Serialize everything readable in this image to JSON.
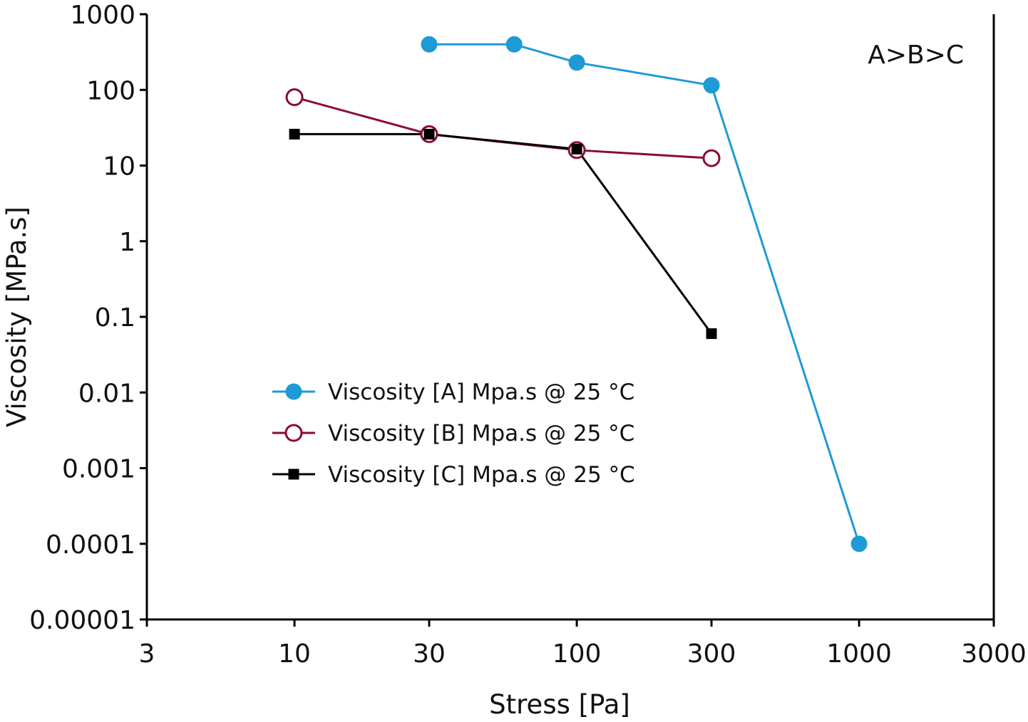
{
  "chart_data": {
    "type": "line",
    "title": "",
    "xlabel": "Stress [Pa]",
    "ylabel": "Viscosity [MPa.s]",
    "x_scale": "log",
    "y_scale": "log",
    "xlim": [
      3,
      3000
    ],
    "ylim": [
      1e-05,
      1000
    ],
    "x_ticks": [
      3,
      10,
      30,
      100,
      300,
      1000,
      3000
    ],
    "x_tick_labels": [
      "3",
      "10",
      "30",
      "100",
      "300",
      "1000",
      "3000"
    ],
    "y_ticks": [
      1e-05,
      0.0001,
      0.001,
      0.01,
      0.1,
      1,
      10,
      100,
      1000
    ],
    "y_tick_labels": [
      "0.00001",
      "0.0001",
      "0.001",
      "0.01",
      "0.1",
      "1",
      "10",
      "100",
      "1000"
    ],
    "grid": false,
    "legend_position": "center-left",
    "annotation": "A>B>C",
    "series": [
      {
        "name": "Viscosity [A] Mpa.s @ 25 °C",
        "color": "#1e9ad6",
        "marker": "filled-circle",
        "x": [
          30,
          60,
          100,
          300,
          1000
        ],
        "y": [
          400,
          400,
          230,
          115,
          0.0001
        ]
      },
      {
        "name": "Viscosity [B] Mpa.s @ 25 °C",
        "color": "#8b0a35",
        "marker": "open-circle",
        "x": [
          10,
          30,
          100,
          300
        ],
        "y": [
          80,
          26,
          16,
          12.5
        ]
      },
      {
        "name": "Viscosity [C] Mpa.s @ 25 °C",
        "color": "#000000",
        "marker": "filled-square",
        "x": [
          10,
          30,
          100,
          300
        ],
        "y": [
          26,
          26,
          16.5,
          0.06
        ]
      }
    ]
  }
}
